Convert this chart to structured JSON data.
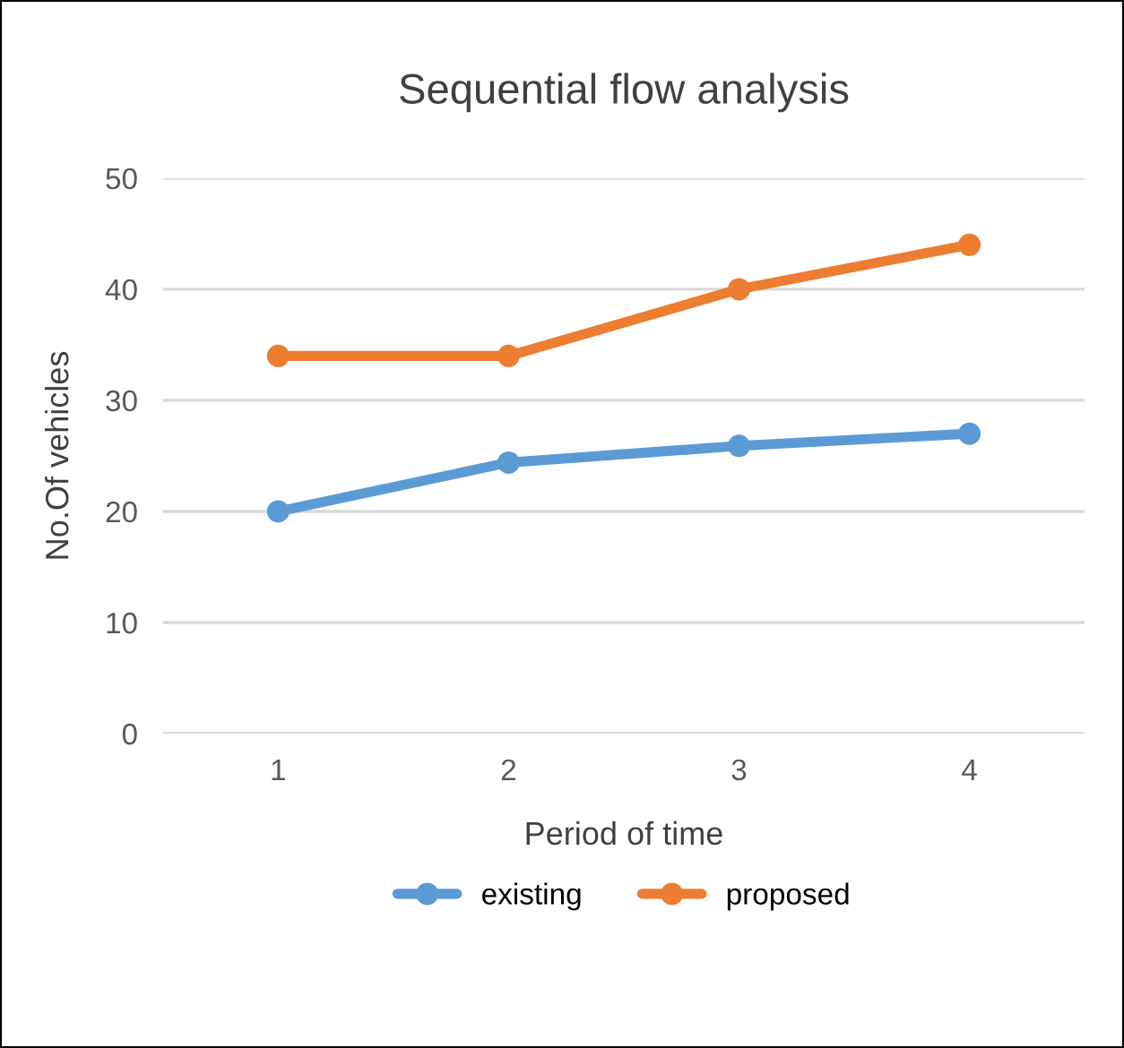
{
  "chart_data": {
    "type": "line",
    "title": "Sequential flow analysis",
    "xlabel": "Period of time",
    "ylabel": "No.Of vehicles",
    "categories": [
      "1",
      "2",
      "3",
      "4"
    ],
    "series": [
      {
        "name": "existing",
        "color": "#5b9bd5",
        "values": [
          20,
          24.4,
          25.9,
          27
        ]
      },
      {
        "name": "proposed",
        "color": "#ed7d31",
        "values": [
          34,
          34,
          40,
          44
        ]
      }
    ],
    "ylim": [
      0,
      50
    ],
    "yticks": [
      0,
      10,
      20,
      30,
      40,
      50
    ],
    "grid": "y",
    "legend": "bottom",
    "marker": "circle",
    "line_style": "solid"
  }
}
